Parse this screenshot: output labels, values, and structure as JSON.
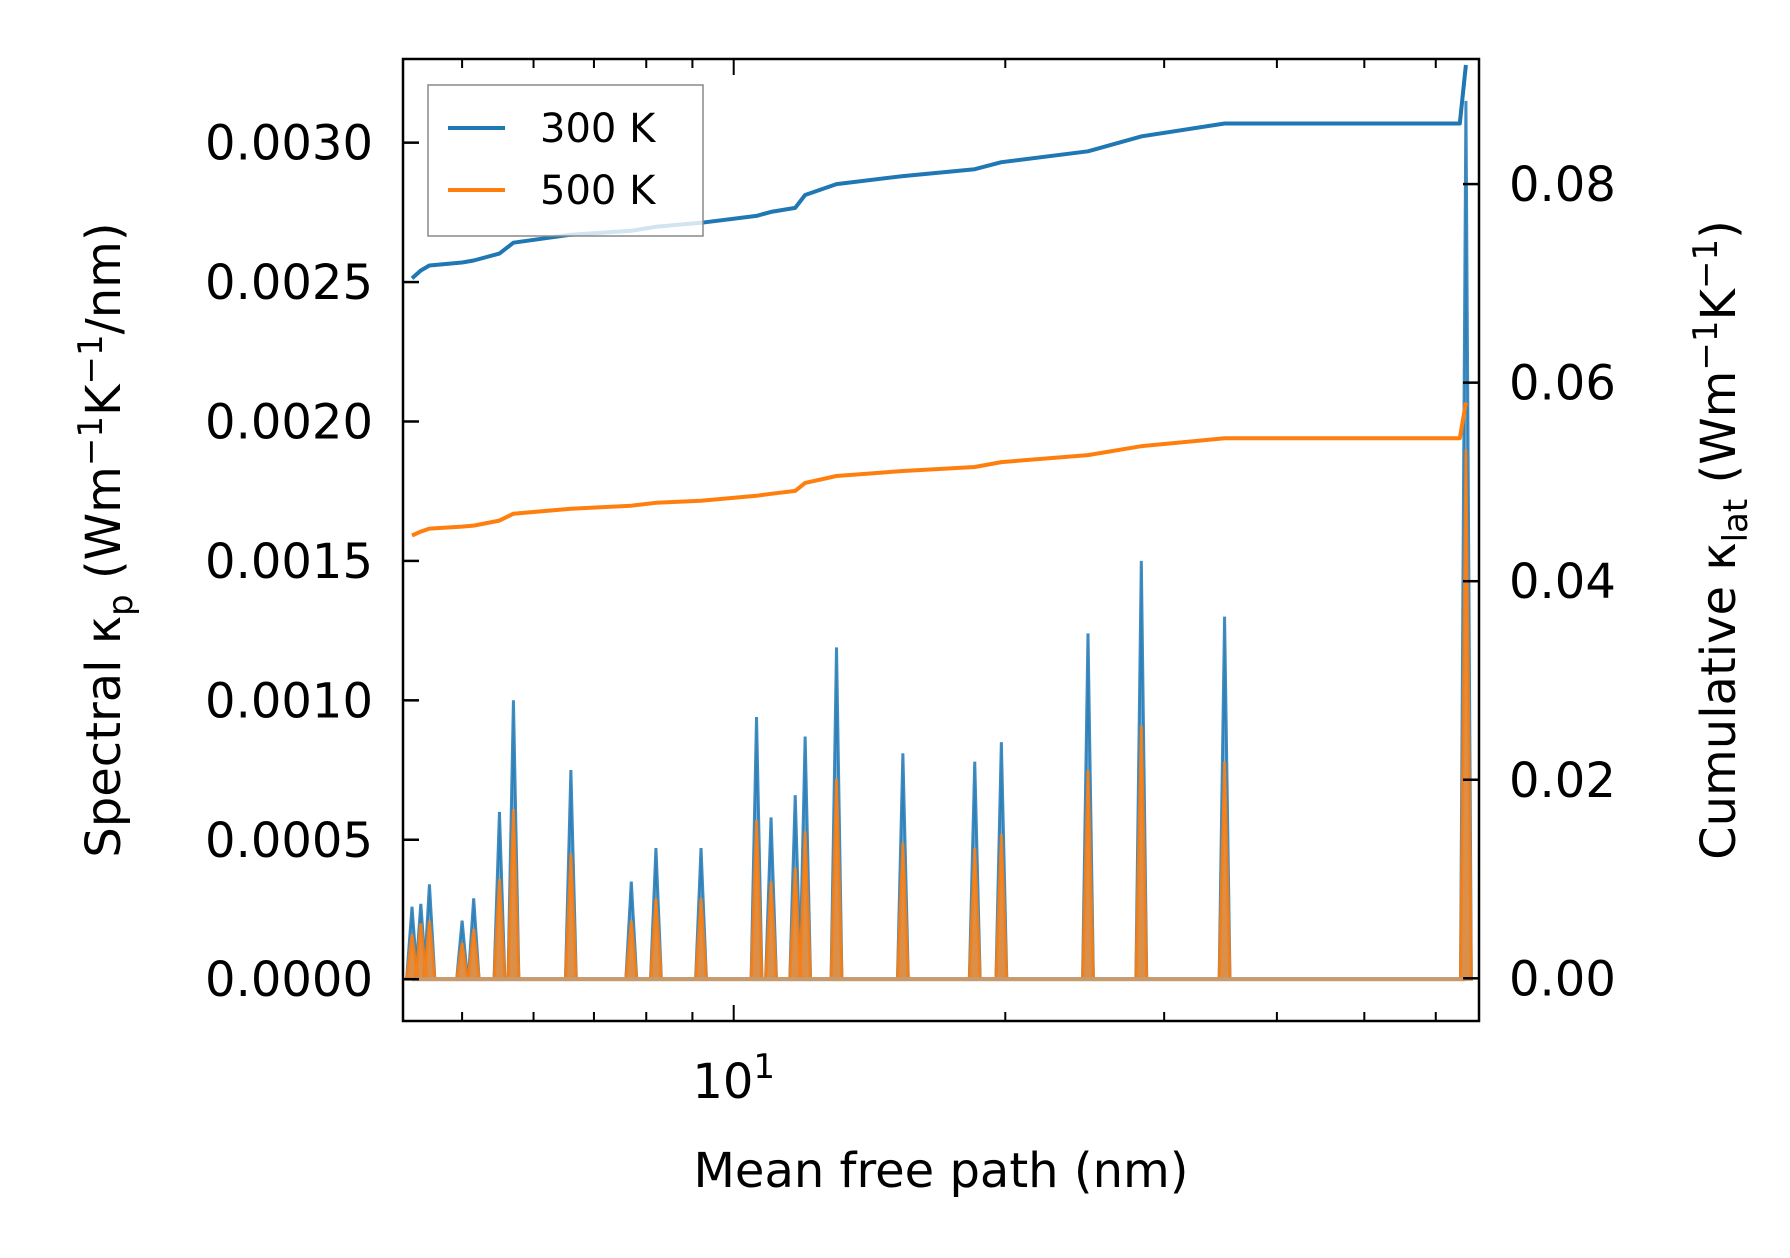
{
  "chart_data": {
    "type": "line",
    "title": "",
    "xlabel": "Mean free path (nm)",
    "xscale": "log",
    "xlim": [
      4.3,
      67
    ],
    "x_tick_labels": [
      {
        "value": 10,
        "label": "10",
        "exponent": "1"
      }
    ],
    "ylabel_left": {
      "prefix": "Spectral κ",
      "subscript": "p",
      "unit_open": " (Wm",
      "exp1": "−1",
      "mid": "K",
      "exp2": "−1",
      "suffix": "/nm)"
    },
    "ylabel_right": {
      "prefix": "Cumulative κ",
      "subscript": "lat",
      "unit_open": " (Wm",
      "exp1": "−1",
      "mid": "K",
      "exp2": "−1",
      "suffix": ")"
    },
    "ylim_left": [
      -0.00015,
      0.0033
    ],
    "ylim_right": [
      -0.0043,
      0.0926
    ],
    "yticks_left": [
      {
        "value": 0.0,
        "label": "0.0000"
      },
      {
        "value": 0.0005,
        "label": "0.0005"
      },
      {
        "value": 0.001,
        "label": "0.0010"
      },
      {
        "value": 0.0015,
        "label": "0.0015"
      },
      {
        "value": 0.002,
        "label": "0.0020"
      },
      {
        "value": 0.0025,
        "label": "0.0025"
      },
      {
        "value": 0.003,
        "label": "0.0030"
      }
    ],
    "yticks_right": [
      {
        "value": 0.0,
        "label": "0.00"
      },
      {
        "value": 0.02,
        "label": "0.02"
      },
      {
        "value": 0.04,
        "label": "0.04"
      },
      {
        "value": 0.06,
        "label": "0.06"
      },
      {
        "value": 0.08,
        "label": "0.08"
      }
    ],
    "legend": {
      "location": "upper-left",
      "entries": [
        {
          "label": "300 K",
          "color": "#1f77b4"
        },
        {
          "label": "500 K",
          "color": "#ff7f0e"
        }
      ]
    },
    "spectral_series": [
      {
        "name": "300 K",
        "color": "#1f77b4",
        "axis": "left",
        "peaks": [
          {
            "x": 4.4,
            "y": 0.00026
          },
          {
            "x": 4.5,
            "y": 0.00027
          },
          {
            "x": 4.6,
            "y": 0.00034
          },
          {
            "x": 5.0,
            "y": 0.00021
          },
          {
            "x": 5.15,
            "y": 0.00029
          },
          {
            "x": 5.5,
            "y": 0.0006
          },
          {
            "x": 5.7,
            "y": 0.001
          },
          {
            "x": 6.6,
            "y": 0.00075
          },
          {
            "x": 7.7,
            "y": 0.00035
          },
          {
            "x": 8.2,
            "y": 0.00047
          },
          {
            "x": 9.2,
            "y": 0.00047
          },
          {
            "x": 10.6,
            "y": 0.00094
          },
          {
            "x": 11.0,
            "y": 0.00058
          },
          {
            "x": 11.7,
            "y": 0.00066
          },
          {
            "x": 12.0,
            "y": 0.00087
          },
          {
            "x": 13.0,
            "y": 0.00119
          },
          {
            "x": 15.4,
            "y": 0.00081
          },
          {
            "x": 18.5,
            "y": 0.00078
          },
          {
            "x": 19.8,
            "y": 0.00085
          },
          {
            "x": 24.7,
            "y": 0.00124
          },
          {
            "x": 28.3,
            "y": 0.0015
          },
          {
            "x": 35.0,
            "y": 0.0013
          },
          {
            "x": 64.8,
            "y": 0.00315
          }
        ]
      },
      {
        "name": "500 K",
        "color": "#ff7f0e",
        "axis": "left",
        "peaks": [
          {
            "x": 4.4,
            "y": 0.00016
          },
          {
            "x": 4.5,
            "y": 0.0002
          },
          {
            "x": 4.6,
            "y": 0.00021
          },
          {
            "x": 5.0,
            "y": 0.00013
          },
          {
            "x": 5.15,
            "y": 0.00018
          },
          {
            "x": 5.5,
            "y": 0.00036
          },
          {
            "x": 5.7,
            "y": 0.00061
          },
          {
            "x": 6.6,
            "y": 0.00045
          },
          {
            "x": 7.7,
            "y": 0.00021
          },
          {
            "x": 8.2,
            "y": 0.00029
          },
          {
            "x": 9.2,
            "y": 0.00029
          },
          {
            "x": 10.6,
            "y": 0.00057
          },
          {
            "x": 11.0,
            "y": 0.00035
          },
          {
            "x": 11.7,
            "y": 0.0004
          },
          {
            "x": 12.0,
            "y": 0.00053
          },
          {
            "x": 13.0,
            "y": 0.00072
          },
          {
            "x": 15.4,
            "y": 0.00049
          },
          {
            "x": 18.5,
            "y": 0.00047
          },
          {
            "x": 19.8,
            "y": 0.00052
          },
          {
            "x": 24.7,
            "y": 0.00075
          },
          {
            "x": 28.3,
            "y": 0.00091
          },
          {
            "x": 35.0,
            "y": 0.00078
          },
          {
            "x": 64.8,
            "y": 0.0019
          }
        ]
      }
    ],
    "cumulative_series": [
      {
        "name": "300 K",
        "color": "#1f77b4",
        "axis": "right",
        "x": [
          4.4,
          4.5,
          4.6,
          5.0,
          5.15,
          5.5,
          5.7,
          6.6,
          7.7,
          8.2,
          9.2,
          10.6,
          11.0,
          11.7,
          12.0,
          13.0,
          15.4,
          18.5,
          19.8,
          24.7,
          28.3,
          35.0,
          63.8,
          64.8
        ],
        "y": [
          0.0705,
          0.0713,
          0.0718,
          0.0721,
          0.0723,
          0.073,
          0.0741,
          0.0749,
          0.0753,
          0.0757,
          0.0761,
          0.0768,
          0.0772,
          0.0776,
          0.0789,
          0.08,
          0.0808,
          0.0815,
          0.0822,
          0.0833,
          0.0848,
          0.0861,
          0.0861,
          0.092
        ]
      },
      {
        "name": "500 K",
        "color": "#ff7f0e",
        "axis": "right",
        "x": [
          4.4,
          4.5,
          4.6,
          5.0,
          5.15,
          5.5,
          5.7,
          6.6,
          7.7,
          8.2,
          9.2,
          10.6,
          11.0,
          11.7,
          12.0,
          13.0,
          15.4,
          18.5,
          19.8,
          24.7,
          28.3,
          35.0,
          63.8,
          64.8
        ],
        "y": [
          0.0446,
          0.045,
          0.0453,
          0.0455,
          0.0456,
          0.0461,
          0.0468,
          0.0473,
          0.0476,
          0.0479,
          0.0481,
          0.0486,
          0.0488,
          0.0491,
          0.0499,
          0.0506,
          0.0511,
          0.0515,
          0.052,
          0.0527,
          0.0536,
          0.0544,
          0.0544,
          0.058
        ]
      }
    ]
  }
}
